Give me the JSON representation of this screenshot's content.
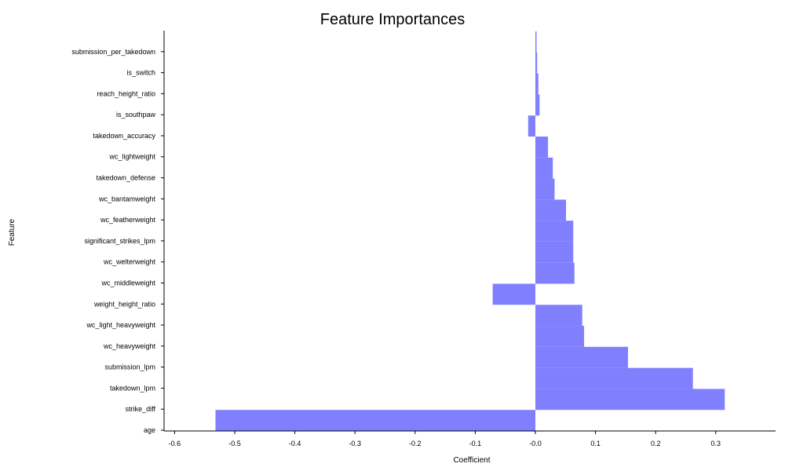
{
  "chart_data": {
    "type": "bar",
    "orientation": "horizontal",
    "title": "Feature Importances",
    "xlabel": "Coefficient",
    "ylabel": "Feature",
    "categories": [
      "submission_per_takedown",
      "is_switch",
      "reach_height_ratio",
      "is_southpaw",
      "takedown_accuracy",
      "wc_lightweight",
      "takedown_defense",
      "wc_bantamweight",
      "wc_featherweight",
      "significant_strikes_lpm",
      "wc_welterweight",
      "wc_middleweight",
      "weight_height_ratio",
      "wc_light_heavyweight",
      "wc_heavyweight",
      "submission_lpm",
      "takedown_lpm",
      "strike_diff",
      "age"
    ],
    "values": [
      0.002,
      0.003,
      0.005,
      0.007,
      -0.012,
      0.021,
      0.029,
      0.032,
      0.051,
      0.063,
      0.063,
      0.065,
      -0.071,
      0.078,
      0.081,
      0.154,
      0.262,
      0.315,
      -0.532
    ],
    "xlim": [
      -0.62,
      0.4
    ],
    "xticks": [
      "-0.6",
      "-0.5",
      "-0.4",
      "-0.3",
      "-0.2",
      "-0.1",
      "-0.0",
      "0.1",
      "0.2",
      "0.3"
    ],
    "xtick_values": [
      -0.6,
      -0.5,
      -0.4,
      -0.3,
      -0.2,
      -0.1,
      0.0,
      0.1,
      0.2,
      0.3
    ],
    "grid": false,
    "bar_color": "#8080ff"
  }
}
